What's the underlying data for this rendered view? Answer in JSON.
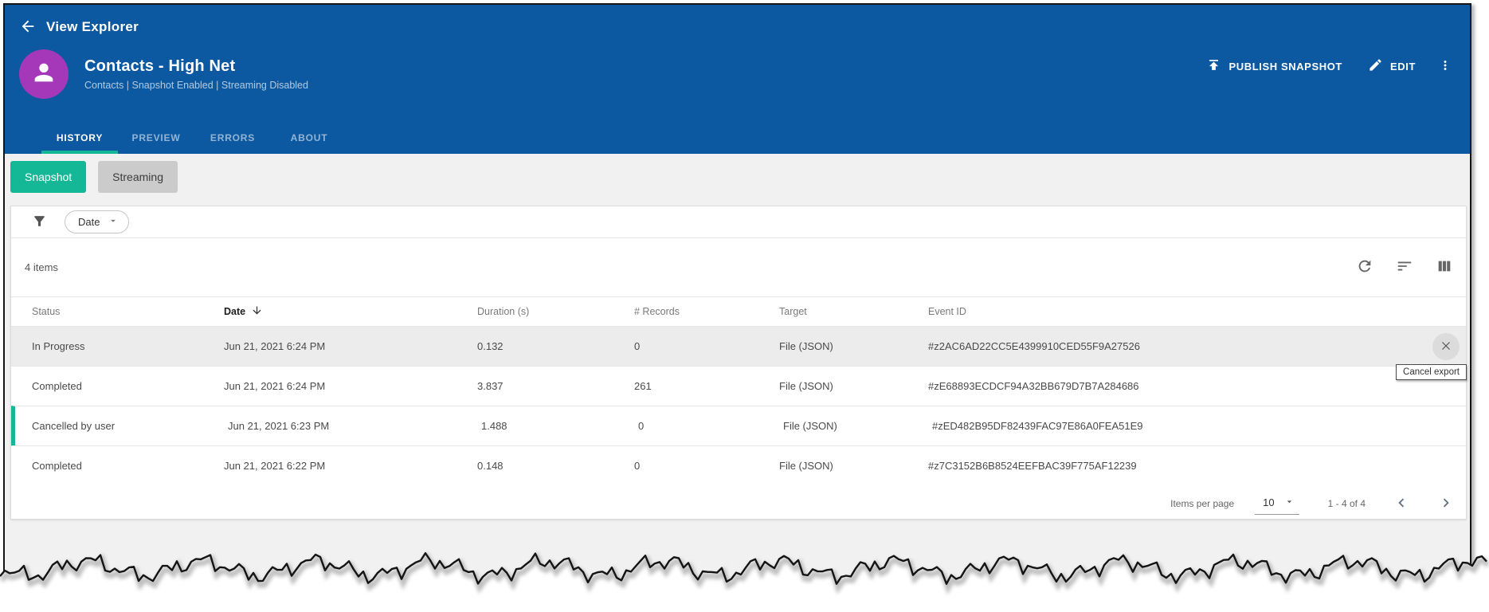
{
  "header": {
    "app_title": "View Explorer",
    "view": {
      "title": "Contacts - High Net",
      "subtitle": "Contacts | Snapshot Enabled | Streaming Disabled"
    },
    "actions": {
      "publish": "PUBLISH SNAPSHOT",
      "edit": "EDIT"
    },
    "tabs": [
      {
        "label": "HISTORY",
        "active": true
      },
      {
        "label": "PREVIEW",
        "active": false
      },
      {
        "label": "ERRORS",
        "active": false
      },
      {
        "label": "ABOUT",
        "active": false
      }
    ]
  },
  "toggles": {
    "snapshot": "Snapshot",
    "streaming": "Streaming"
  },
  "filter": {
    "chip_label": "Date"
  },
  "toolbar": {
    "items_count": "4 items"
  },
  "table": {
    "columns": [
      "Status",
      "Date",
      "Duration (s)",
      "# Records",
      "Target",
      "Event ID"
    ],
    "sorted_column": "Date",
    "sort_direction": "desc",
    "rows": [
      {
        "status": "In Progress",
        "date": "Jun 21, 2021 6:24 PM",
        "duration": "0.132",
        "records": "0",
        "target": "File (JSON)",
        "event_id": "#z2AC6AD22CC5E4399910CED55F9A27526",
        "highlighted": true
      },
      {
        "status": "Completed",
        "date": "Jun 21, 2021 6:24 PM",
        "duration": "3.837",
        "records": "261",
        "target": "File (JSON)",
        "event_id": "#zE68893ECDCF94A32BB679D7B7A284686"
      },
      {
        "status": "Cancelled by user",
        "date": "Jun 21, 2021 6:23 PM",
        "duration": "1.488",
        "records": "0",
        "target": "File (JSON)",
        "event_id": "#zED482B95DF82439FAC97E86A0FEA51E9",
        "accent": true
      },
      {
        "status": "Completed",
        "date": "Jun 21, 2021 6:22 PM",
        "duration": "0.148",
        "records": "0",
        "target": "File (JSON)",
        "event_id": "#z7C3152B6B8524EEFBAC39F775AF12239"
      }
    ],
    "tooltip": "Cancel export"
  },
  "pagination": {
    "items_per_page_label": "Items per page",
    "items_per_page_value": "10",
    "range": "1 - 4 of 4"
  },
  "colors": {
    "header_blue": "#0d59a1",
    "accent_teal": "#14b897",
    "avatar_purple": "#a438b8"
  }
}
